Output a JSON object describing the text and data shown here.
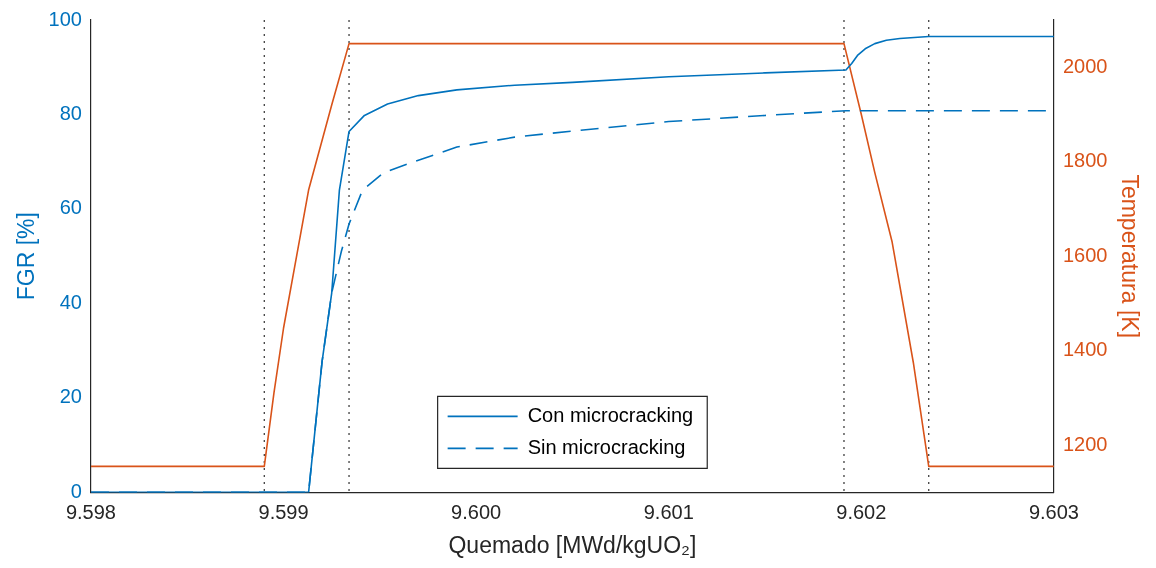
{
  "chart_data": {
    "type": "line",
    "xlabel": "Quemado [MWd/kgUO₂]",
    "ylabel": "FGR [%]",
    "y2label": "Temperatura [K]",
    "xlim": [
      9.598,
      9.603
    ],
    "xticks": [
      9.598,
      9.599,
      {
        "value": 9.6,
        "label": "9.600"
      },
      9.601,
      9.602,
      9.603
    ],
    "ylim": [
      0,
      100
    ],
    "yticks": [
      0,
      20,
      40,
      60,
      80,
      100
    ],
    "y2lim": [
      1100,
      2100
    ],
    "y2ticks": [
      1200,
      1400,
      1600,
      1800,
      2000
    ],
    "grid": false,
    "legend": "bottom",
    "marker": "none",
    "ref_lines": [
      {
        "axis": "x",
        "value": 9.5989,
        "color": "#404040",
        "line_style": "dotted"
      },
      {
        "axis": "x",
        "value": 9.59934,
        "color": "#404040",
        "line_style": "dotted"
      },
      {
        "axis": "x",
        "value": 9.60191,
        "color": "#404040",
        "line_style": "dotted"
      },
      {
        "axis": "x",
        "value": 9.60235,
        "color": "#404040",
        "line_style": "dotted"
      }
    ],
    "series": [
      {
        "name": "Con microcracking",
        "color": "#0072bd",
        "line_style": "solid",
        "x": [
          9.598,
          9.59913,
          9.5992,
          9.59925,
          9.59929,
          9.59934,
          9.59942,
          9.59954,
          9.5997,
          9.5999,
          9.6002,
          9.6005,
          9.601,
          9.6015,
          9.60192,
          9.60195,
          9.60198,
          9.60202,
          9.60207,
          9.60213,
          9.6022,
          9.60235,
          9.603
        ],
        "values": [
          0,
          0,
          27.7,
          42.2,
          64,
          76.4,
          79.8,
          82.2,
          84,
          85.2,
          86.2,
          86.8,
          88,
          88.8,
          89.4,
          90.8,
          92.5,
          93.9,
          95,
          95.7,
          96.1,
          96.5,
          96.5
        ]
      },
      {
        "name": "Sin microcracking",
        "color": "#0072bd",
        "line_style": "dashed",
        "x": [
          9.598,
          9.59913,
          9.5992,
          9.59925,
          9.5993,
          9.59934,
          9.59941,
          9.59952,
          9.59967,
          9.5999,
          9.6002,
          9.6005,
          9.601,
          9.6015,
          9.60192,
          9.603
        ],
        "values": [
          0,
          0,
          27.7,
          42.2,
          51,
          56.8,
          64,
          67.7,
          69.9,
          73.1,
          75.2,
          76.5,
          78.5,
          79.8,
          80.8,
          80.8
        ]
      },
      {
        "color": "#d95319",
        "line_style": "solid",
        "axis": "y2",
        "x": [
          9.598,
          9.5989,
          9.59895,
          9.599,
          9.59913,
          9.59925,
          9.59934,
          9.60191,
          9.602,
          9.60207,
          9.60216,
          9.60227,
          9.60235,
          9.603
        ],
        "values": [
          1155,
          1155,
          1310,
          1448,
          1740,
          1920,
          2050,
          2050,
          1900,
          1777,
          1630,
          1375,
          1155,
          1155
        ]
      }
    ]
  }
}
